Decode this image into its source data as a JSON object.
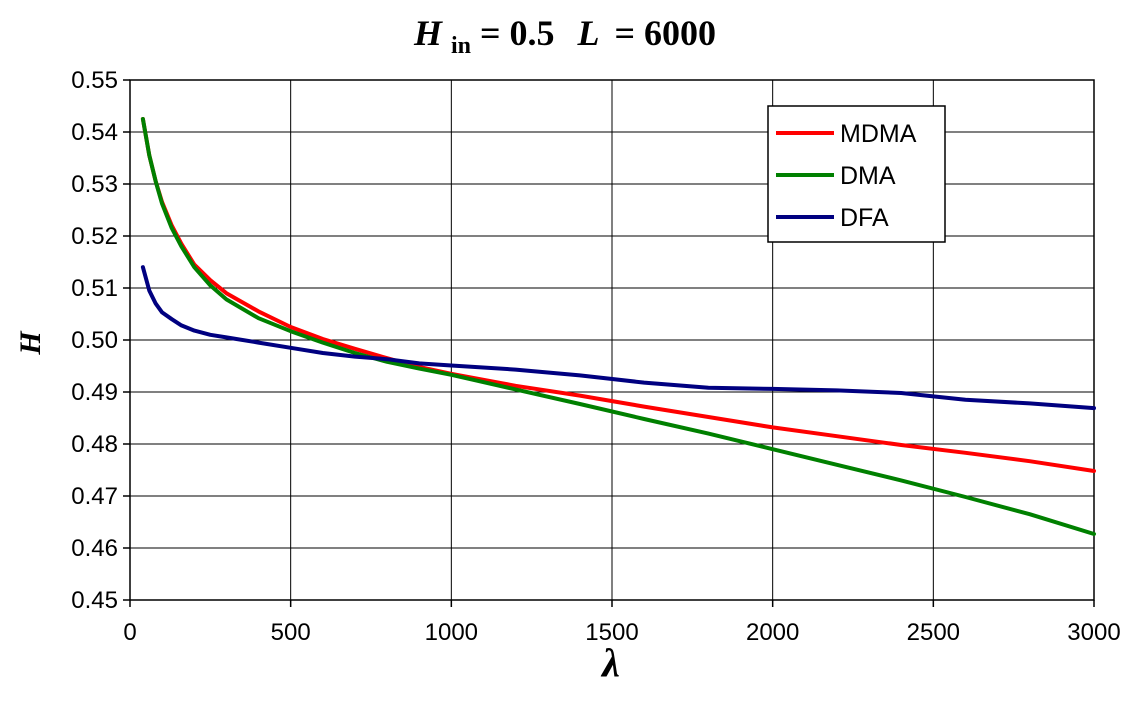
{
  "chart_data": {
    "type": "line",
    "title": {
      "h_symbol": "H",
      "h_subscript": "in",
      "h_value": "= 0.5",
      "l_symbol": "L",
      "l_value": "= 6000"
    },
    "xlabel": "λ",
    "ylabel": "H",
    "xlim": [
      0,
      3000
    ],
    "ylim": [
      0.45,
      0.55
    ],
    "x_ticks": [
      "0",
      "500",
      "1000",
      "1500",
      "2000",
      "2500",
      "3000"
    ],
    "y_ticks": [
      "0.45",
      "0.46",
      "0.47",
      "0.48",
      "0.49",
      "0.50",
      "0.51",
      "0.52",
      "0.53",
      "0.54",
      "0.55"
    ],
    "grid": true,
    "legend_position": "top-right",
    "series": [
      {
        "name": "MDMA",
        "color": "#ff0000",
        "x": [
          40,
          60,
          80,
          100,
          130,
          160,
          200,
          250,
          300,
          400,
          500,
          600,
          700,
          800,
          900,
          1000,
          1200,
          1400,
          1600,
          1800,
          2000,
          2200,
          2400,
          2600,
          2800,
          3000
        ],
        "y": [
          0.5425,
          0.5355,
          0.5305,
          0.5265,
          0.522,
          0.5185,
          0.5145,
          0.5115,
          0.509,
          0.5055,
          0.5025,
          0.5002,
          0.4983,
          0.4965,
          0.4948,
          0.4935,
          0.4912,
          0.4893,
          0.4872,
          0.4852,
          0.4832,
          0.4815,
          0.4798,
          0.4783,
          0.4767,
          0.4748
        ]
      },
      {
        "name": "DMA",
        "color": "#008000",
        "x": [
          40,
          60,
          80,
          100,
          130,
          160,
          200,
          250,
          300,
          400,
          500,
          600,
          700,
          800,
          900,
          1000,
          1200,
          1400,
          1600,
          1800,
          2000,
          2200,
          2400,
          2600,
          2800,
          3000
        ],
        "y": [
          0.5425,
          0.5355,
          0.5305,
          0.5262,
          0.5215,
          0.518,
          0.514,
          0.5105,
          0.5078,
          0.5042,
          0.5017,
          0.4995,
          0.4975,
          0.4958,
          0.4945,
          0.4933,
          0.4905,
          0.4877,
          0.4848,
          0.482,
          0.479,
          0.476,
          0.473,
          0.4698,
          0.4665,
          0.4627
        ]
      },
      {
        "name": "DFA",
        "color": "#000080",
        "x": [
          40,
          60,
          80,
          100,
          130,
          160,
          200,
          250,
          300,
          400,
          500,
          600,
          700,
          800,
          900,
          1000,
          1200,
          1400,
          1600,
          1800,
          2000,
          2200,
          2400,
          2600,
          2800,
          3000
        ],
        "y": [
          0.514,
          0.5095,
          0.507,
          0.5053,
          0.504,
          0.5028,
          0.5018,
          0.501,
          0.5005,
          0.4995,
          0.4985,
          0.4975,
          0.4968,
          0.4963,
          0.4955,
          0.4951,
          0.4943,
          0.4932,
          0.4918,
          0.4908,
          0.4906,
          0.4903,
          0.4898,
          0.4885,
          0.4878,
          0.4869
        ]
      }
    ]
  }
}
